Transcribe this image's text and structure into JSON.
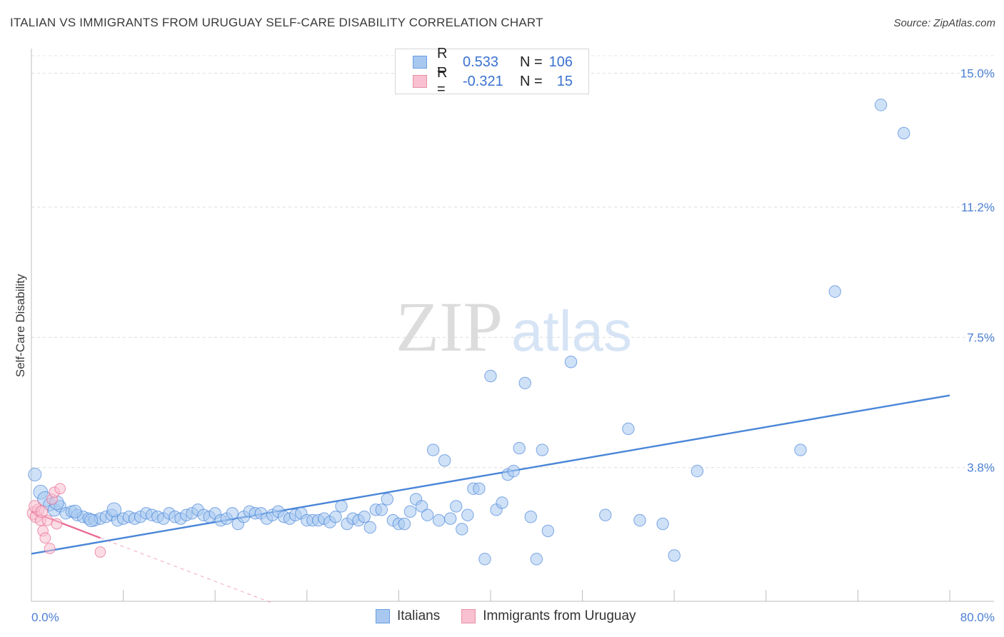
{
  "header": {
    "title": "ITALIAN VS IMMIGRANTS FROM URUGUAY SELF-CARE DISABILITY CORRELATION CHART",
    "source": "Source: ZipAtlas.com"
  },
  "watermark": {
    "zip": "ZIP",
    "atlas": "atlas"
  },
  "legend": {
    "rows": [
      {
        "r_label": "R =",
        "r_value": "0.533",
        "n_label": "N =",
        "n_value": "106",
        "color": "#a8c8f0",
        "border": "#6a9ee0"
      },
      {
        "r_label": "R =",
        "r_value": "-0.321",
        "n_label": "N =",
        "n_value": "15",
        "color": "#f8c0d0",
        "border": "#e890a8"
      }
    ]
  },
  "bottom_legend": {
    "items": [
      {
        "label": "Italians",
        "color": "#a8c8f0",
        "border": "#6a9ee0"
      },
      {
        "label": "Immigrants from Uruguay",
        "color": "#f8c0d0",
        "border": "#e890a8"
      }
    ]
  },
  "chart_data": {
    "type": "scatter",
    "title": "ITALIAN VS IMMIGRANTS FROM URUGUAY SELF-CARE DISABILITY CORRELATION CHART",
    "xlabel": "",
    "ylabel": "Self-Care Disability",
    "xlim": [
      0,
      80
    ],
    "ylim": [
      0,
      15.5
    ],
    "x_tick_labels": [
      "0.0%",
      "80.0%"
    ],
    "y_ticks": [
      {
        "value": 3.8,
        "label": "3.8%"
      },
      {
        "value": 7.5,
        "label": "7.5%"
      },
      {
        "value": 11.2,
        "label": "11.2%"
      },
      {
        "value": 15.0,
        "label": "15.0%"
      }
    ],
    "grid": true,
    "series": [
      {
        "name": "Italians",
        "color": "#4a86d8",
        "fill": "#a8c8f0",
        "trend": {
          "x": [
            0,
            80
          ],
          "y": [
            1.35,
            5.85
          ]
        },
        "points": [
          [
            0.3,
            3.6
          ],
          [
            0.8,
            3.1
          ],
          [
            1.2,
            2.9
          ],
          [
            1.6,
            2.75
          ],
          [
            2.0,
            2.6
          ],
          [
            2.5,
            2.7
          ],
          [
            3.0,
            2.5
          ],
          [
            3.5,
            2.55
          ],
          [
            4.0,
            2.45
          ],
          [
            4.5,
            2.4
          ],
          [
            5.0,
            2.35
          ],
          [
            5.5,
            2.3
          ],
          [
            6.0,
            2.35
          ],
          [
            6.5,
            2.4
          ],
          [
            7.0,
            2.45
          ],
          [
            7.5,
            2.3
          ],
          [
            8.0,
            2.35
          ],
          [
            8.5,
            2.4
          ],
          [
            9.0,
            2.35
          ],
          [
            9.5,
            2.4
          ],
          [
            10.0,
            2.5
          ],
          [
            10.5,
            2.45
          ],
          [
            11.0,
            2.4
          ],
          [
            11.5,
            2.35
          ],
          [
            12.0,
            2.5
          ],
          [
            12.5,
            2.4
          ],
          [
            13.0,
            2.35
          ],
          [
            13.5,
            2.45
          ],
          [
            14.0,
            2.5
          ],
          [
            14.5,
            2.6
          ],
          [
            15.0,
            2.45
          ],
          [
            15.5,
            2.4
          ],
          [
            16.0,
            2.5
          ],
          [
            16.5,
            2.3
          ],
          [
            17.0,
            2.35
          ],
          [
            17.5,
            2.5
          ],
          [
            18.0,
            2.2
          ],
          [
            18.5,
            2.4
          ],
          [
            19.0,
            2.55
          ],
          [
            19.5,
            2.5
          ],
          [
            20.0,
            2.5
          ],
          [
            20.5,
            2.35
          ],
          [
            21.0,
            2.45
          ],
          [
            21.5,
            2.55
          ],
          [
            22.0,
            2.4
          ],
          [
            22.5,
            2.35
          ],
          [
            23.0,
            2.45
          ],
          [
            23.5,
            2.5
          ],
          [
            24.0,
            2.3
          ],
          [
            24.5,
            2.3
          ],
          [
            25.0,
            2.3
          ],
          [
            25.5,
            2.35
          ],
          [
            26.0,
            2.25
          ],
          [
            26.5,
            2.4
          ],
          [
            27.0,
            2.7
          ],
          [
            27.5,
            2.2
          ],
          [
            28.0,
            2.35
          ],
          [
            28.5,
            2.3
          ],
          [
            29.0,
            2.4
          ],
          [
            29.5,
            2.1
          ],
          [
            30.0,
            2.6
          ],
          [
            30.5,
            2.6
          ],
          [
            31.0,
            2.9
          ],
          [
            31.5,
            2.3
          ],
          [
            32.0,
            2.2
          ],
          [
            32.5,
            2.2
          ],
          [
            33.0,
            2.55
          ],
          [
            33.5,
            2.9
          ],
          [
            34.0,
            2.7
          ],
          [
            34.5,
            2.45
          ],
          [
            35.0,
            4.3
          ],
          [
            35.5,
            2.3
          ],
          [
            36.0,
            4.0
          ],
          [
            36.5,
            2.35
          ],
          [
            37.0,
            2.7
          ],
          [
            37.5,
            2.05
          ],
          [
            38.0,
            2.45
          ],
          [
            38.5,
            3.2
          ],
          [
            39.0,
            3.2
          ],
          [
            39.5,
            1.2
          ],
          [
            40.0,
            6.4
          ],
          [
            40.5,
            2.6
          ],
          [
            41.0,
            2.8
          ],
          [
            41.5,
            3.6
          ],
          [
            42.0,
            3.7
          ],
          [
            42.5,
            4.35
          ],
          [
            43.0,
            6.2
          ],
          [
            43.5,
            2.4
          ],
          [
            44.0,
            1.2
          ],
          [
            44.5,
            4.3
          ],
          [
            45.0,
            2.0
          ],
          [
            47.0,
            6.8
          ],
          [
            50.0,
            2.45
          ],
          [
            52.0,
            4.9
          ],
          [
            53.0,
            2.3
          ],
          [
            55.0,
            2.2
          ],
          [
            56.0,
            1.3
          ],
          [
            58.0,
            3.7
          ],
          [
            67.0,
            4.3
          ],
          [
            70.0,
            8.8
          ],
          [
            74.0,
            14.1
          ],
          [
            76.0,
            13.3
          ],
          [
            2.2,
            2.8
          ],
          [
            3.8,
            2.55
          ],
          [
            5.2,
            2.3
          ],
          [
            7.2,
            2.6
          ]
        ],
        "sizes": [
          11,
          12,
          13,
          11,
          11,
          10,
          10,
          10,
          10,
          10,
          10,
          10,
          10,
          10,
          10,
          10,
          10,
          10,
          10,
          10,
          10,
          10,
          10,
          10,
          10,
          10,
          10,
          10,
          10,
          10,
          10,
          10,
          10,
          10,
          10,
          10,
          10,
          10,
          10,
          10,
          10,
          10,
          10,
          10,
          10,
          10,
          10,
          10,
          10,
          10,
          10,
          10,
          10,
          10,
          10,
          10,
          10,
          10,
          10,
          10,
          10,
          10,
          10,
          10,
          10,
          10,
          10,
          10,
          10,
          10,
          10,
          10,
          10,
          10,
          10,
          10,
          10,
          10,
          10,
          10,
          10,
          10,
          10,
          10,
          10,
          10,
          10,
          10,
          10,
          10,
          10,
          10,
          10,
          10,
          10,
          10,
          10,
          10,
          10,
          10,
          10,
          10,
          12,
          11,
          11,
          12
        ]
      },
      {
        "name": "Immigrants from Uruguay",
        "color": "#e86a92",
        "fill": "#f8c0d0",
        "trend": {
          "x": [
            0,
            6.0
          ],
          "y": [
            2.55,
            1.8
          ]
        },
        "trend_ext": {
          "x": [
            6.0,
            21.0
          ],
          "y": [
            1.8,
            -0.05
          ]
        },
        "points": [
          [
            0.2,
            2.5
          ],
          [
            0.4,
            2.4
          ],
          [
            0.6,
            2.6
          ],
          [
            0.8,
            2.3
          ],
          [
            1.0,
            2.0
          ],
          [
            1.2,
            1.8
          ],
          [
            1.4,
            2.3
          ],
          [
            1.6,
            1.5
          ],
          [
            1.8,
            2.9
          ],
          [
            2.0,
            3.1
          ],
          [
            2.2,
            2.2
          ],
          [
            2.5,
            3.2
          ],
          [
            0.3,
            2.7
          ],
          [
            0.9,
            2.55
          ],
          [
            6.0,
            1.4
          ]
        ],
        "sizes": [
          11,
          10,
          10,
          9,
          9,
          9,
          9,
          9,
          9,
          9,
          9,
          9,
          10,
          10,
          9
        ]
      }
    ]
  }
}
